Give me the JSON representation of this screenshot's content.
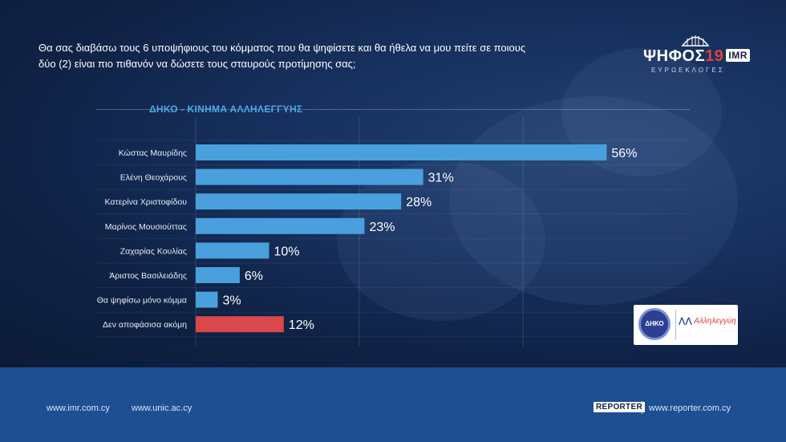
{
  "question": "Θα σας διαβάσω τους 6 υποψήφιους του κόμματος που θα ψηφίσετε και θα ήθελα να μου πείτε σε ποιους δύο (2) είναι πιο πιθανόν να δώσετε τους σταυρούς προτίμησης σας;",
  "logo": {
    "main": "ΨΗΦΟΣ",
    "year": "19",
    "brand": "IMR",
    "subtitle": "ΕΥΡΩΕΚΛΟΓΕΣ"
  },
  "party_logos": {
    "left_text": "ΔΗΚΟ",
    "right_text": "Αλληλεγγύη"
  },
  "footer": {
    "link1": "www.imr.com.cy",
    "link2": "www.unic.ac.cy",
    "reporter_badge": "REPORTER",
    "link3": "www.reporter.com.cy"
  },
  "colors": {
    "bar": "#4a9fdd",
    "bar_highlight": "#d9484b",
    "title": "#4ea8e6"
  },
  "chart_data": {
    "type": "bar",
    "orientation": "horizontal",
    "title": "ΔΗΚΟ - ΚΙΝΗΜΑ ΑΛΛΗΛΕΓΓΥΗΣ",
    "categories": [
      "Κώστας Μαυρίδης",
      "Ελένη Θεοχάρους",
      "Κατερίνα Χριστοφίδου",
      "Μαρίνος Μουσιούττας",
      "Ζαχαρίας Κουλίας",
      "Άριστος Βασιλειάδης",
      "Θα ψηφίσω μόνο κόμμα",
      "Δεν αποφάσισα ακόμη"
    ],
    "values": [
      56,
      31,
      28,
      23,
      10,
      6,
      3,
      12
    ],
    "labels": [
      "56%",
      "31%",
      "28%",
      "23%",
      "10%",
      "6%",
      "3%",
      "12%"
    ],
    "highlight": [
      false,
      false,
      false,
      false,
      false,
      false,
      false,
      true
    ],
    "xlim": [
      0,
      100
    ],
    "grid": true
  }
}
